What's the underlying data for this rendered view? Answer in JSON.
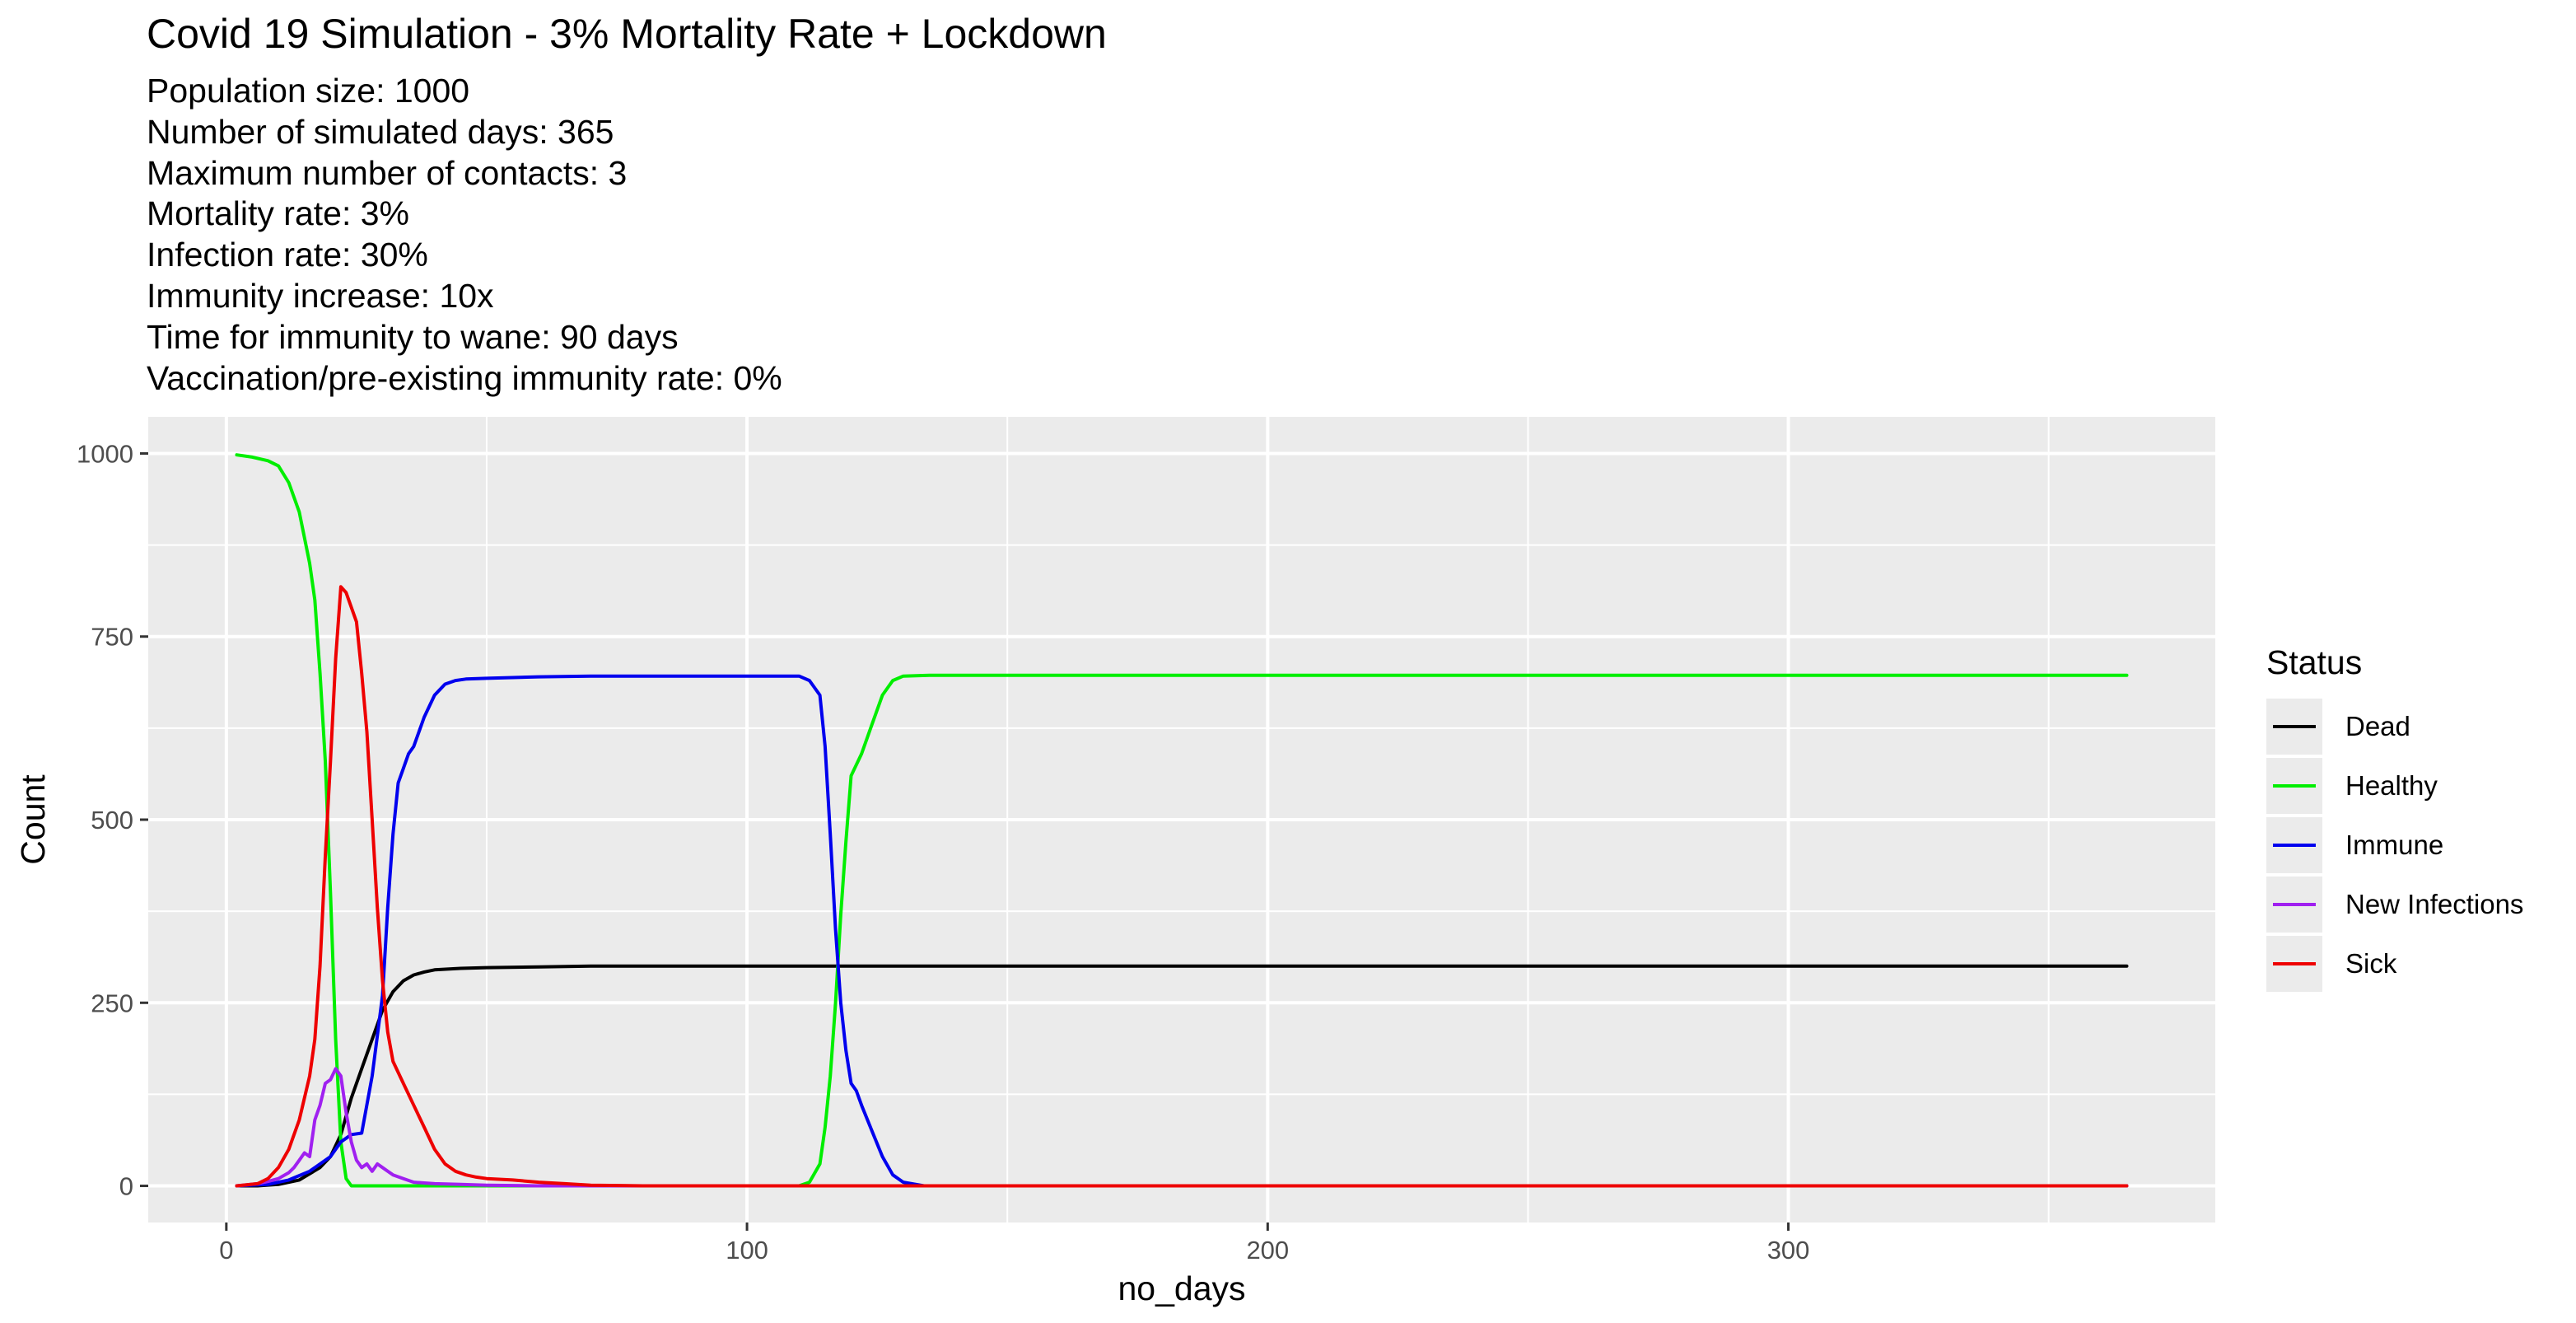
{
  "chart_data": {
    "type": "line",
    "title": "Covid 19 Simulation - 3% Mortality Rate + Lockdown",
    "subtitle_lines": [
      "Population size: 1000",
      "Number of simulated days: 365",
      "Maximum number of contacts: 3",
      "Mortality rate: 3%",
      "Infection rate: 30%",
      "Immunity increase: 10x",
      "Time for immunity to wane: 90 days",
      "Vaccination/pre-existing immunity rate: 0%"
    ],
    "xlabel": "no_days",
    "ylabel": "Count",
    "xlim": [
      -15,
      382
    ],
    "ylim": [
      -50,
      1050
    ],
    "x_ticks": [
      0,
      100,
      200,
      300
    ],
    "y_ticks": [
      0,
      250,
      500,
      750,
      1000
    ],
    "grid": true,
    "legend": {
      "title": "Status",
      "position": "right"
    },
    "series": [
      {
        "name": "Dead",
        "color": "#000000",
        "points": [
          [
            2,
            0
          ],
          [
            6,
            0
          ],
          [
            10,
            2
          ],
          [
            14,
            8
          ],
          [
            18,
            25
          ],
          [
            20,
            40
          ],
          [
            22,
            70
          ],
          [
            24,
            120
          ],
          [
            26,
            160
          ],
          [
            28,
            200
          ],
          [
            30,
            240
          ],
          [
            32,
            265
          ],
          [
            34,
            280
          ],
          [
            36,
            288
          ],
          [
            38,
            292
          ],
          [
            40,
            295
          ],
          [
            45,
            297
          ],
          [
            50,
            298
          ],
          [
            60,
            299
          ],
          [
            70,
            300
          ],
          [
            100,
            300
          ],
          [
            200,
            300
          ],
          [
            365,
            300
          ]
        ]
      },
      {
        "name": "Healthy",
        "color": "#00ee00",
        "points": [
          [
            2,
            998
          ],
          [
            5,
            995
          ],
          [
            8,
            990
          ],
          [
            10,
            983
          ],
          [
            12,
            960
          ],
          [
            14,
            920
          ],
          [
            16,
            850
          ],
          [
            17,
            800
          ],
          [
            18,
            700
          ],
          [
            19,
            580
          ],
          [
            20,
            400
          ],
          [
            21,
            200
          ],
          [
            22,
            60
          ],
          [
            23,
            10
          ],
          [
            24,
            0
          ],
          [
            110,
            0
          ],
          [
            112,
            5
          ],
          [
            114,
            30
          ],
          [
            115,
            80
          ],
          [
            116,
            150
          ],
          [
            117,
            250
          ],
          [
            118,
            370
          ],
          [
            119,
            470
          ],
          [
            120,
            560
          ],
          [
            122,
            590
          ],
          [
            124,
            630
          ],
          [
            126,
            670
          ],
          [
            128,
            690
          ],
          [
            130,
            696
          ],
          [
            135,
            697
          ],
          [
            150,
            697
          ],
          [
            365,
            697
          ]
        ]
      },
      {
        "name": "Immune",
        "color": "#0000ee",
        "points": [
          [
            2,
            0
          ],
          [
            8,
            2
          ],
          [
            12,
            8
          ],
          [
            16,
            20
          ],
          [
            20,
            40
          ],
          [
            22,
            60
          ],
          [
            24,
            70
          ],
          [
            26,
            72
          ],
          [
            28,
            150
          ],
          [
            30,
            260
          ],
          [
            31,
            380
          ],
          [
            32,
            480
          ],
          [
            33,
            550
          ],
          [
            34,
            570
          ],
          [
            35,
            590
          ],
          [
            36,
            600
          ],
          [
            38,
            640
          ],
          [
            40,
            670
          ],
          [
            42,
            685
          ],
          [
            44,
            690
          ],
          [
            46,
            692
          ],
          [
            50,
            693
          ],
          [
            55,
            694
          ],
          [
            60,
            695
          ],
          [
            70,
            696
          ],
          [
            100,
            696
          ],
          [
            110,
            696
          ],
          [
            112,
            690
          ],
          [
            114,
            670
          ],
          [
            115,
            600
          ],
          [
            116,
            480
          ],
          [
            117,
            350
          ],
          [
            118,
            250
          ],
          [
            119,
            185
          ],
          [
            120,
            140
          ],
          [
            121,
            130
          ],
          [
            122,
            110
          ],
          [
            124,
            75
          ],
          [
            126,
            40
          ],
          [
            128,
            15
          ],
          [
            130,
            5
          ],
          [
            134,
            0
          ],
          [
            365,
            0
          ]
        ]
      },
      {
        "name": "New Infections",
        "color": "#a020f0",
        "points": [
          [
            2,
            0
          ],
          [
            6,
            3
          ],
          [
            8,
            6
          ],
          [
            10,
            10
          ],
          [
            12,
            18
          ],
          [
            13,
            25
          ],
          [
            14,
            35
          ],
          [
            15,
            45
          ],
          [
            16,
            40
          ],
          [
            17,
            90
          ],
          [
            18,
            110
          ],
          [
            19,
            140
          ],
          [
            20,
            145
          ],
          [
            21,
            160
          ],
          [
            22,
            150
          ],
          [
            23,
            100
          ],
          [
            24,
            60
          ],
          [
            25,
            35
          ],
          [
            26,
            25
          ],
          [
            27,
            30
          ],
          [
            28,
            20
          ],
          [
            29,
            30
          ],
          [
            30,
            25
          ],
          [
            31,
            20
          ],
          [
            32,
            15
          ],
          [
            34,
            10
          ],
          [
            36,
            5
          ],
          [
            40,
            3
          ],
          [
            45,
            2
          ],
          [
            50,
            1
          ],
          [
            60,
            0
          ],
          [
            365,
            0
          ]
        ]
      },
      {
        "name": "Sick",
        "color": "#ee0000",
        "points": [
          [
            2,
            0
          ],
          [
            6,
            3
          ],
          [
            8,
            10
          ],
          [
            10,
            25
          ],
          [
            12,
            50
          ],
          [
            14,
            90
          ],
          [
            16,
            150
          ],
          [
            17,
            200
          ],
          [
            18,
            300
          ],
          [
            19,
            450
          ],
          [
            20,
            580
          ],
          [
            21,
            720
          ],
          [
            22,
            818
          ],
          [
            23,
            810
          ],
          [
            24,
            790
          ],
          [
            25,
            770
          ],
          [
            26,
            700
          ],
          [
            27,
            620
          ],
          [
            28,
            500
          ],
          [
            29,
            380
          ],
          [
            30,
            280
          ],
          [
            31,
            210
          ],
          [
            32,
            170
          ],
          [
            34,
            140
          ],
          [
            36,
            110
          ],
          [
            38,
            80
          ],
          [
            40,
            50
          ],
          [
            42,
            30
          ],
          [
            44,
            20
          ],
          [
            46,
            15
          ],
          [
            48,
            12
          ],
          [
            50,
            10
          ],
          [
            55,
            8
          ],
          [
            60,
            5
          ],
          [
            65,
            3
          ],
          [
            70,
            1
          ],
          [
            80,
            0
          ],
          [
            365,
            0
          ]
        ]
      }
    ]
  }
}
